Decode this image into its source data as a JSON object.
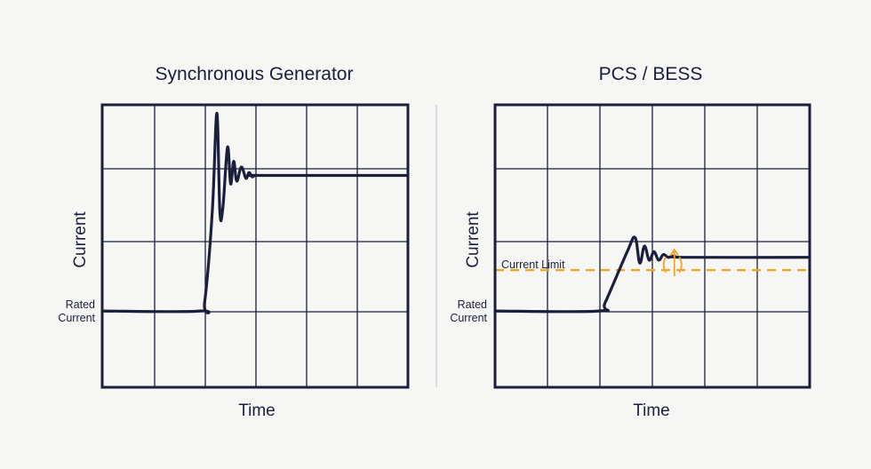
{
  "colors": {
    "ink": "#1b1f3b",
    "grid": "#1b1f3b",
    "limit": "#f0a52a",
    "divider": "#c8c8c8",
    "background": "#f6f6f4"
  },
  "chart_data": [
    {
      "type": "line",
      "title": "Synchronous Generator",
      "xlabel": "Time",
      "ylabel": "Current",
      "annotations": {
        "rated_current": [
          "Rated",
          "Current"
        ]
      },
      "grid": true,
      "series": [
        {
          "values_description_free": true,
          "x": [
            0.0,
            0.32,
            0.335,
            0.36,
            0.375,
            0.385,
            0.395,
            0.41,
            0.42,
            0.43,
            0.44,
            0.455,
            0.47,
            0.48,
            0.49,
            0.5,
            0.52,
            1.0
          ],
          "y": [
            0.27,
            0.27,
            0.3,
            0.62,
            0.97,
            0.62,
            0.64,
            0.85,
            0.72,
            0.8,
            0.73,
            0.78,
            0.74,
            0.76,
            0.745,
            0.75,
            0.75,
            0.75
          ]
        }
      ]
    },
    {
      "type": "line",
      "title": "PCS / BESS",
      "xlabel": "Time",
      "ylabel": "Current",
      "annotations": {
        "rated_current": [
          "Rated",
          "Current"
        ],
        "current_limit": "Current Limit"
      },
      "grid": true,
      "series": [
        {
          "x": [
            0.0,
            0.33,
            0.35,
            0.42,
            0.445,
            0.46,
            0.475,
            0.49,
            0.505,
            0.52,
            0.535,
            0.55,
            0.57,
            0.6,
            1.0
          ],
          "y": [
            0.27,
            0.27,
            0.3,
            0.48,
            0.53,
            0.44,
            0.5,
            0.45,
            0.48,
            0.45,
            0.47,
            0.46,
            0.465,
            0.46,
            0.46
          ]
        }
      ],
      "reference_lines": [
        {
          "y": 0.415,
          "style": "dashed"
        }
      ]
    }
  ]
}
